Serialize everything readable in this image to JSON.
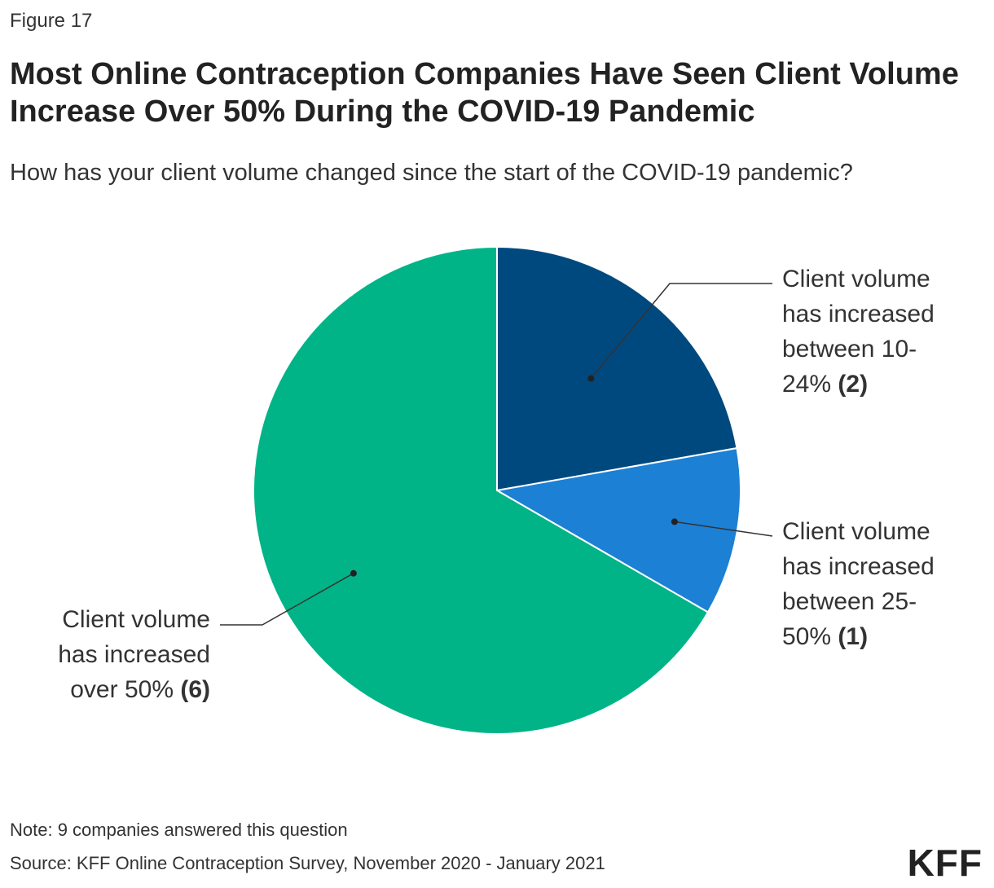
{
  "figure_label": "Figure 17",
  "title": "Most Online Contraception Companies Have Seen Client Volume Increase Over 50% During the COVID-19 Pandemic",
  "subtitle": "How has your client volume changed since the start of the COVID-19 pandemic?",
  "note": "Note: 9 companies answered this question",
  "source": "Source: KFF Online Contraception Survey, November 2020 - January 2021",
  "logo_text": "KFF",
  "chart_data": {
    "type": "pie",
    "start_angle": "12 o'clock",
    "direction": "clockwise",
    "slices": [
      {
        "label_lines": [
          "Client volume",
          "has increased",
          "between 10-",
          "24%"
        ],
        "count_label": "(2)",
        "value": 2,
        "color": "#00497f"
      },
      {
        "label_lines": [
          "Client volume",
          "has increased",
          "between 25-",
          "50%"
        ],
        "count_label": "(1)",
        "value": 1,
        "color": "#1c80d4"
      },
      {
        "label_lines": [
          "Client volume",
          "has increased",
          "over 50%"
        ],
        "count_label": "(6)",
        "value": 6,
        "color": "#00b487"
      }
    ]
  }
}
